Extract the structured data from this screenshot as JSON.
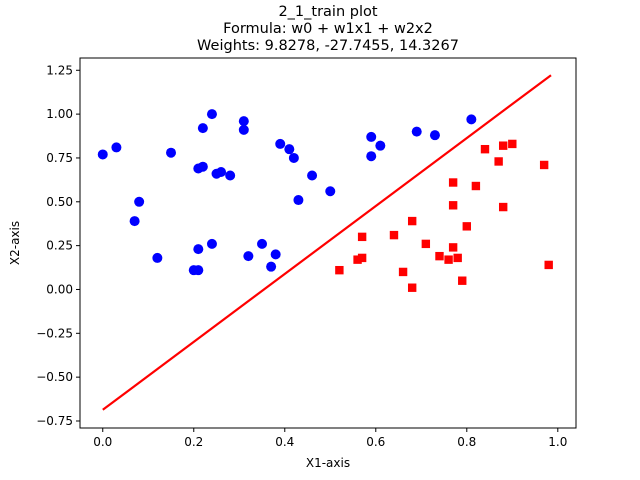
{
  "chart_data": {
    "type": "scatter",
    "title_lines": [
      "2_1_train plot",
      "Formula: w0 + w1x1 + w2x2",
      "Weights: 9.8278, -27.7455, 14.3267"
    ],
    "xlabel": "X1-axis",
    "ylabel": "X2-axis",
    "xlim": [
      -0.05,
      1.04
    ],
    "ylim": [
      -0.79,
      1.32
    ],
    "xticks": [
      0.0,
      0.2,
      0.4,
      0.6,
      0.8,
      1.0
    ],
    "xtick_labels": [
      "0.0",
      "0.2",
      "0.4",
      "0.6",
      "0.8",
      "1.0"
    ],
    "yticks": [
      -0.75,
      -0.5,
      -0.25,
      0.0,
      0.25,
      0.5,
      0.75,
      1.0,
      1.25
    ],
    "ytick_labels": [
      "−0.75",
      "−0.50",
      "−0.25",
      "0.00",
      "0.25",
      "0.50",
      "0.75",
      "1.00",
      "1.25"
    ],
    "grid": false,
    "series": [
      {
        "marker": "circle",
        "color": "#0000ff",
        "points": [
          [
            0.0,
            0.77
          ],
          [
            0.03,
            0.81
          ],
          [
            0.07,
            0.39
          ],
          [
            0.08,
            0.5
          ],
          [
            0.12,
            0.18
          ],
          [
            0.15,
            0.78
          ],
          [
            0.2,
            0.11
          ],
          [
            0.21,
            0.23
          ],
          [
            0.21,
            0.69
          ],
          [
            0.21,
            0.11
          ],
          [
            0.22,
            0.7
          ],
          [
            0.22,
            0.92
          ],
          [
            0.24,
            0.26
          ],
          [
            0.24,
            1.0
          ],
          [
            0.25,
            0.66
          ],
          [
            0.26,
            0.67
          ],
          [
            0.28,
            0.65
          ],
          [
            0.31,
            0.91
          ],
          [
            0.31,
            0.96
          ],
          [
            0.32,
            0.19
          ],
          [
            0.35,
            0.26
          ],
          [
            0.37,
            0.13
          ],
          [
            0.38,
            0.2
          ],
          [
            0.39,
            0.83
          ],
          [
            0.41,
            0.8
          ],
          [
            0.42,
            0.75
          ],
          [
            0.43,
            0.51
          ],
          [
            0.46,
            0.65
          ],
          [
            0.5,
            0.56
          ],
          [
            0.59,
            0.76
          ],
          [
            0.59,
            0.87
          ],
          [
            0.61,
            0.82
          ],
          [
            0.69,
            0.9
          ],
          [
            0.73,
            0.88
          ],
          [
            0.81,
            0.97
          ]
        ]
      },
      {
        "marker": "square",
        "color": "#ff0000",
        "points": [
          [
            0.52,
            0.11
          ],
          [
            0.56,
            0.17
          ],
          [
            0.57,
            0.18
          ],
          [
            0.57,
            0.3
          ],
          [
            0.64,
            0.31
          ],
          [
            0.66,
            0.1
          ],
          [
            0.68,
            0.39
          ],
          [
            0.68,
            0.01
          ],
          [
            0.71,
            0.26
          ],
          [
            0.74,
            0.19
          ],
          [
            0.76,
            0.17
          ],
          [
            0.77,
            0.61
          ],
          [
            0.77,
            0.48
          ],
          [
            0.77,
            0.24
          ],
          [
            0.78,
            0.18
          ],
          [
            0.79,
            0.05
          ],
          [
            0.8,
            0.36
          ],
          [
            0.82,
            0.59
          ],
          [
            0.84,
            0.8
          ],
          [
            0.87,
            0.73
          ],
          [
            0.88,
            0.82
          ],
          [
            0.88,
            0.47
          ],
          [
            0.9,
            0.83
          ],
          [
            0.97,
            0.71
          ],
          [
            0.98,
            0.14
          ]
        ]
      }
    ],
    "lines": [
      {
        "color": "#ff0000",
        "points": [
          [
            0.0,
            -0.686
          ],
          [
            0.985,
            1.222
          ]
        ]
      }
    ]
  }
}
